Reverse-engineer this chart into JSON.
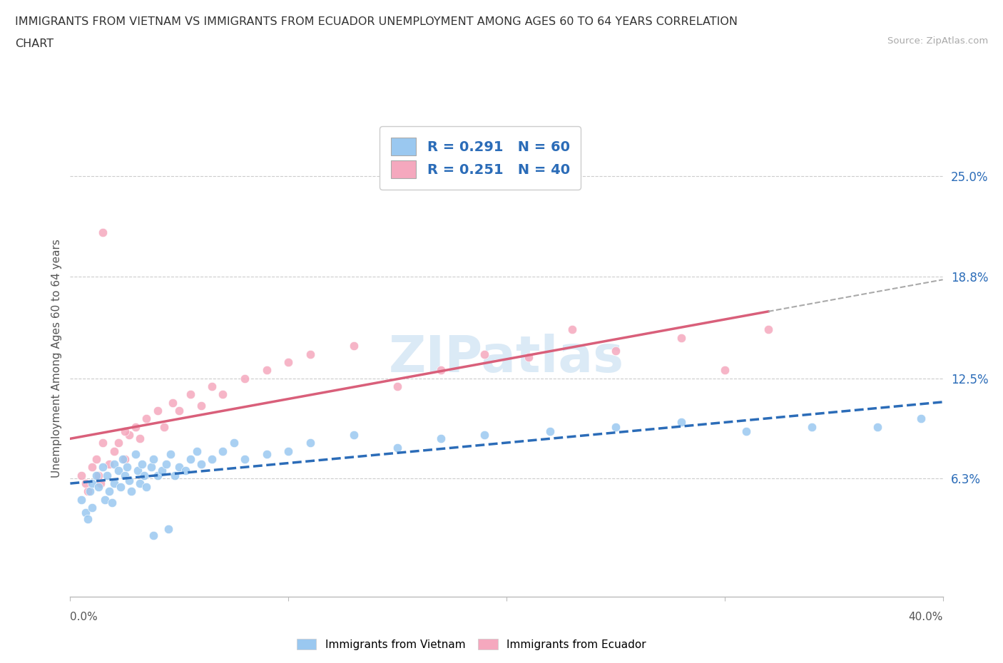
{
  "title_line1": "IMMIGRANTS FROM VIETNAM VS IMMIGRANTS FROM ECUADOR UNEMPLOYMENT AMONG AGES 60 TO 64 YEARS CORRELATION",
  "title_line2": "CHART",
  "source": "Source: ZipAtlas.com",
  "ylabel": "Unemployment Among Ages 60 to 64 years",
  "xlim": [
    0.0,
    0.4
  ],
  "ylim": [
    -0.01,
    0.285
  ],
  "ytick_positions": [
    0.063,
    0.125,
    0.188,
    0.25
  ],
  "ytick_labels": [
    "6.3%",
    "12.5%",
    "18.8%",
    "25.0%"
  ],
  "vietnam_color": "#9ac8f0",
  "ecuador_color": "#f5a8be",
  "vietnam_line_color": "#2b6cb8",
  "ecuador_line_color": "#d95f7a",
  "tick_label_color": "#2b6cb8",
  "legend_text_color": "#2b6cb8",
  "watermark": "ZIPatlas",
  "label_vietnam": "Immigrants from Vietnam",
  "label_ecuador": "Immigrants from Ecuador",
  "legend_R_vietnam": "R = 0.291",
  "legend_N_vietnam": "N = 60",
  "legend_R_ecuador": "R = 0.251",
  "legend_N_ecuador": "N = 40",
  "vietnam_x": [
    0.005,
    0.007,
    0.008,
    0.009,
    0.01,
    0.01,
    0.012,
    0.013,
    0.015,
    0.016,
    0.017,
    0.018,
    0.019,
    0.02,
    0.02,
    0.022,
    0.023,
    0.024,
    0.025,
    0.026,
    0.027,
    0.028,
    0.03,
    0.031,
    0.032,
    0.033,
    0.034,
    0.035,
    0.037,
    0.038,
    0.04,
    0.042,
    0.044,
    0.046,
    0.048,
    0.05,
    0.053,
    0.055,
    0.058,
    0.06,
    0.065,
    0.07,
    0.075,
    0.08,
    0.09,
    0.1,
    0.11,
    0.13,
    0.15,
    0.17,
    0.19,
    0.22,
    0.25,
    0.28,
    0.31,
    0.34,
    0.37,
    0.038,
    0.045,
    0.39
  ],
  "vietnam_y": [
    0.05,
    0.042,
    0.038,
    0.055,
    0.06,
    0.045,
    0.065,
    0.058,
    0.07,
    0.05,
    0.065,
    0.055,
    0.048,
    0.072,
    0.06,
    0.068,
    0.058,
    0.075,
    0.065,
    0.07,
    0.062,
    0.055,
    0.078,
    0.068,
    0.06,
    0.072,
    0.065,
    0.058,
    0.07,
    0.075,
    0.065,
    0.068,
    0.072,
    0.078,
    0.065,
    0.07,
    0.068,
    0.075,
    0.08,
    0.072,
    0.075,
    0.08,
    0.085,
    0.075,
    0.078,
    0.08,
    0.085,
    0.09,
    0.082,
    0.088,
    0.09,
    0.092,
    0.095,
    0.098,
    0.092,
    0.095,
    0.095,
    0.028,
    0.032,
    0.1
  ],
  "ecuador_x": [
    0.005,
    0.007,
    0.008,
    0.01,
    0.012,
    0.013,
    0.014,
    0.015,
    0.018,
    0.02,
    0.022,
    0.025,
    0.027,
    0.03,
    0.032,
    0.035,
    0.04,
    0.043,
    0.047,
    0.05,
    0.055,
    0.06,
    0.065,
    0.07,
    0.08,
    0.09,
    0.1,
    0.11,
    0.13,
    0.15,
    0.17,
    0.19,
    0.21,
    0.23,
    0.25,
    0.28,
    0.3,
    0.015,
    0.025,
    0.32
  ],
  "ecuador_y": [
    0.065,
    0.06,
    0.055,
    0.07,
    0.075,
    0.065,
    0.06,
    0.215,
    0.072,
    0.08,
    0.085,
    0.075,
    0.09,
    0.095,
    0.088,
    0.1,
    0.105,
    0.095,
    0.11,
    0.105,
    0.115,
    0.108,
    0.12,
    0.115,
    0.125,
    0.13,
    0.135,
    0.14,
    0.145,
    0.12,
    0.13,
    0.14,
    0.138,
    0.155,
    0.142,
    0.15,
    0.13,
    0.085,
    0.092,
    0.155
  ]
}
